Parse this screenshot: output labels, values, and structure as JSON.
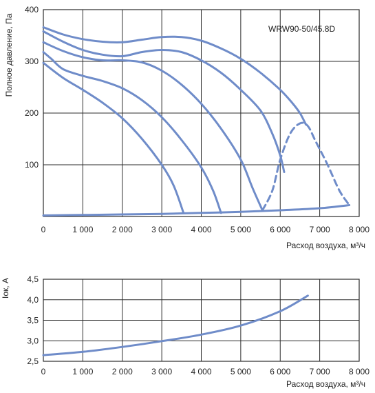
{
  "colors": {
    "curve": "#6f8cc9",
    "grid": "#2b2b2b",
    "text": "#222222"
  },
  "chart_data": [
    {
      "type": "line",
      "model_label": "WRW90-50/45.8D",
      "xlabel": "Расход воздуха, м³/ч",
      "ylabel": "Полное давление, Па",
      "xlim": [
        0,
        8000
      ],
      "ylim": [
        0,
        400
      ],
      "x_ticks": [
        0,
        1000,
        2000,
        3000,
        4000,
        5000,
        6000,
        7000,
        8000
      ],
      "x_tick_labels": [
        "0",
        "1 000",
        "2 000",
        "3 000",
        "4 000",
        "5 000",
        "6 000",
        "7 000",
        "8 000"
      ],
      "y_ticks": [
        100,
        200,
        300,
        400
      ],
      "y_tick_labels": [
        "100",
        "200",
        "300",
        "400"
      ],
      "grid": true,
      "series": [
        {
          "style": "solid",
          "points": [
            [
              0,
              366
            ],
            [
              500,
              352
            ],
            [
              1000,
              343
            ],
            [
              1500,
              338
            ],
            [
              2000,
              337
            ],
            [
              2500,
              342
            ],
            [
              3000,
              347
            ],
            [
              3500,
              347
            ],
            [
              4000,
              340
            ],
            [
              4500,
              325
            ],
            [
              5000,
              305
            ],
            [
              5500,
              278
            ],
            [
              6000,
              245
            ],
            [
              6300,
              220
            ],
            [
              6500,
              200
            ],
            [
              6650,
              178
            ]
          ]
        },
        {
          "style": "solid",
          "points": [
            [
              0,
              358
            ],
            [
              500,
              338
            ],
            [
              1000,
              322
            ],
            [
              1500,
              313
            ],
            [
              2000,
              310
            ],
            [
              2500,
              318
            ],
            [
              3000,
              322
            ],
            [
              3500,
              318
            ],
            [
              4000,
              302
            ],
            [
              4500,
              278
            ],
            [
              5000,
              245
            ],
            [
              5500,
              205
            ],
            [
              5800,
              160
            ],
            [
              6000,
              118
            ],
            [
              6100,
              86
            ]
          ]
        },
        {
          "style": "solid",
          "points": [
            [
              0,
              337
            ],
            [
              500,
              320
            ],
            [
              1000,
              308
            ],
            [
              1500,
              302
            ],
            [
              2000,
              302
            ],
            [
              2500,
              298
            ],
            [
              3000,
              282
            ],
            [
              3500,
              255
            ],
            [
              4000,
              218
            ],
            [
              4500,
              170
            ],
            [
              5000,
              110
            ],
            [
              5300,
              55
            ],
            [
              5550,
              12
            ]
          ]
        },
        {
          "style": "solid",
          "points": [
            [
              0,
              318
            ],
            [
              200,
              305
            ],
            [
              500,
              285
            ],
            [
              1000,
              272
            ],
            [
              1500,
              262
            ],
            [
              2000,
              248
            ],
            [
              2500,
              225
            ],
            [
              3000,
              192
            ],
            [
              3500,
              148
            ],
            [
              4000,
              95
            ],
            [
              4300,
              50
            ],
            [
              4500,
              7
            ]
          ]
        },
        {
          "style": "solid",
          "points": [
            [
              0,
              297
            ],
            [
              500,
              268
            ],
            [
              1000,
              245
            ],
            [
              1500,
              220
            ],
            [
              2000,
              190
            ],
            [
              2500,
              150
            ],
            [
              3000,
              100
            ],
            [
              3300,
              60
            ],
            [
              3550,
              7
            ]
          ]
        },
        {
          "style": "dashed",
          "points": [
            [
              5550,
              12
            ],
            [
              5800,
              50
            ],
            [
              6000,
              110
            ],
            [
              6250,
              160
            ],
            [
              6500,
              180
            ],
            [
              6700,
              175
            ],
            [
              6900,
              145
            ],
            [
              7200,
              100
            ],
            [
              7500,
              50
            ],
            [
              7750,
              22
            ]
          ]
        },
        {
          "style": "solid",
          "points": [
            [
              0,
              2
            ],
            [
              1000,
              3
            ],
            [
              2000,
              4
            ],
            [
              3000,
              5
            ],
            [
              4000,
              7
            ],
            [
              5000,
              9
            ],
            [
              6000,
              12
            ],
            [
              7000,
              16
            ],
            [
              7750,
              22
            ]
          ]
        }
      ]
    },
    {
      "type": "line",
      "xlabel": "Расход воздуха, м³/ч",
      "ylabel": "Iок, A",
      "xlim": [
        0,
        8000
      ],
      "ylim": [
        2.5,
        4.5
      ],
      "x_ticks": [
        0,
        1000,
        2000,
        3000,
        4000,
        5000,
        6000,
        7000,
        8000
      ],
      "x_tick_labels": [
        "0",
        "1 000",
        "2 000",
        "3 000",
        "4 000",
        "5 000",
        "6 000",
        "7 000",
        "8 000"
      ],
      "y_ticks": [
        2.5,
        3.0,
        3.5,
        4.0,
        4.5
      ],
      "y_tick_labels": [
        "2,5",
        "3,0",
        "3,5",
        "4,0",
        "4,5"
      ],
      "grid": true,
      "series": [
        {
          "style": "solid",
          "points": [
            [
              0,
              2.65
            ],
            [
              1000,
              2.73
            ],
            [
              2000,
              2.85
            ],
            [
              3000,
              2.99
            ],
            [
              4000,
              3.15
            ],
            [
              5000,
              3.37
            ],
            [
              6000,
              3.72
            ],
            [
              6700,
              4.1
            ]
          ]
        }
      ]
    }
  ]
}
